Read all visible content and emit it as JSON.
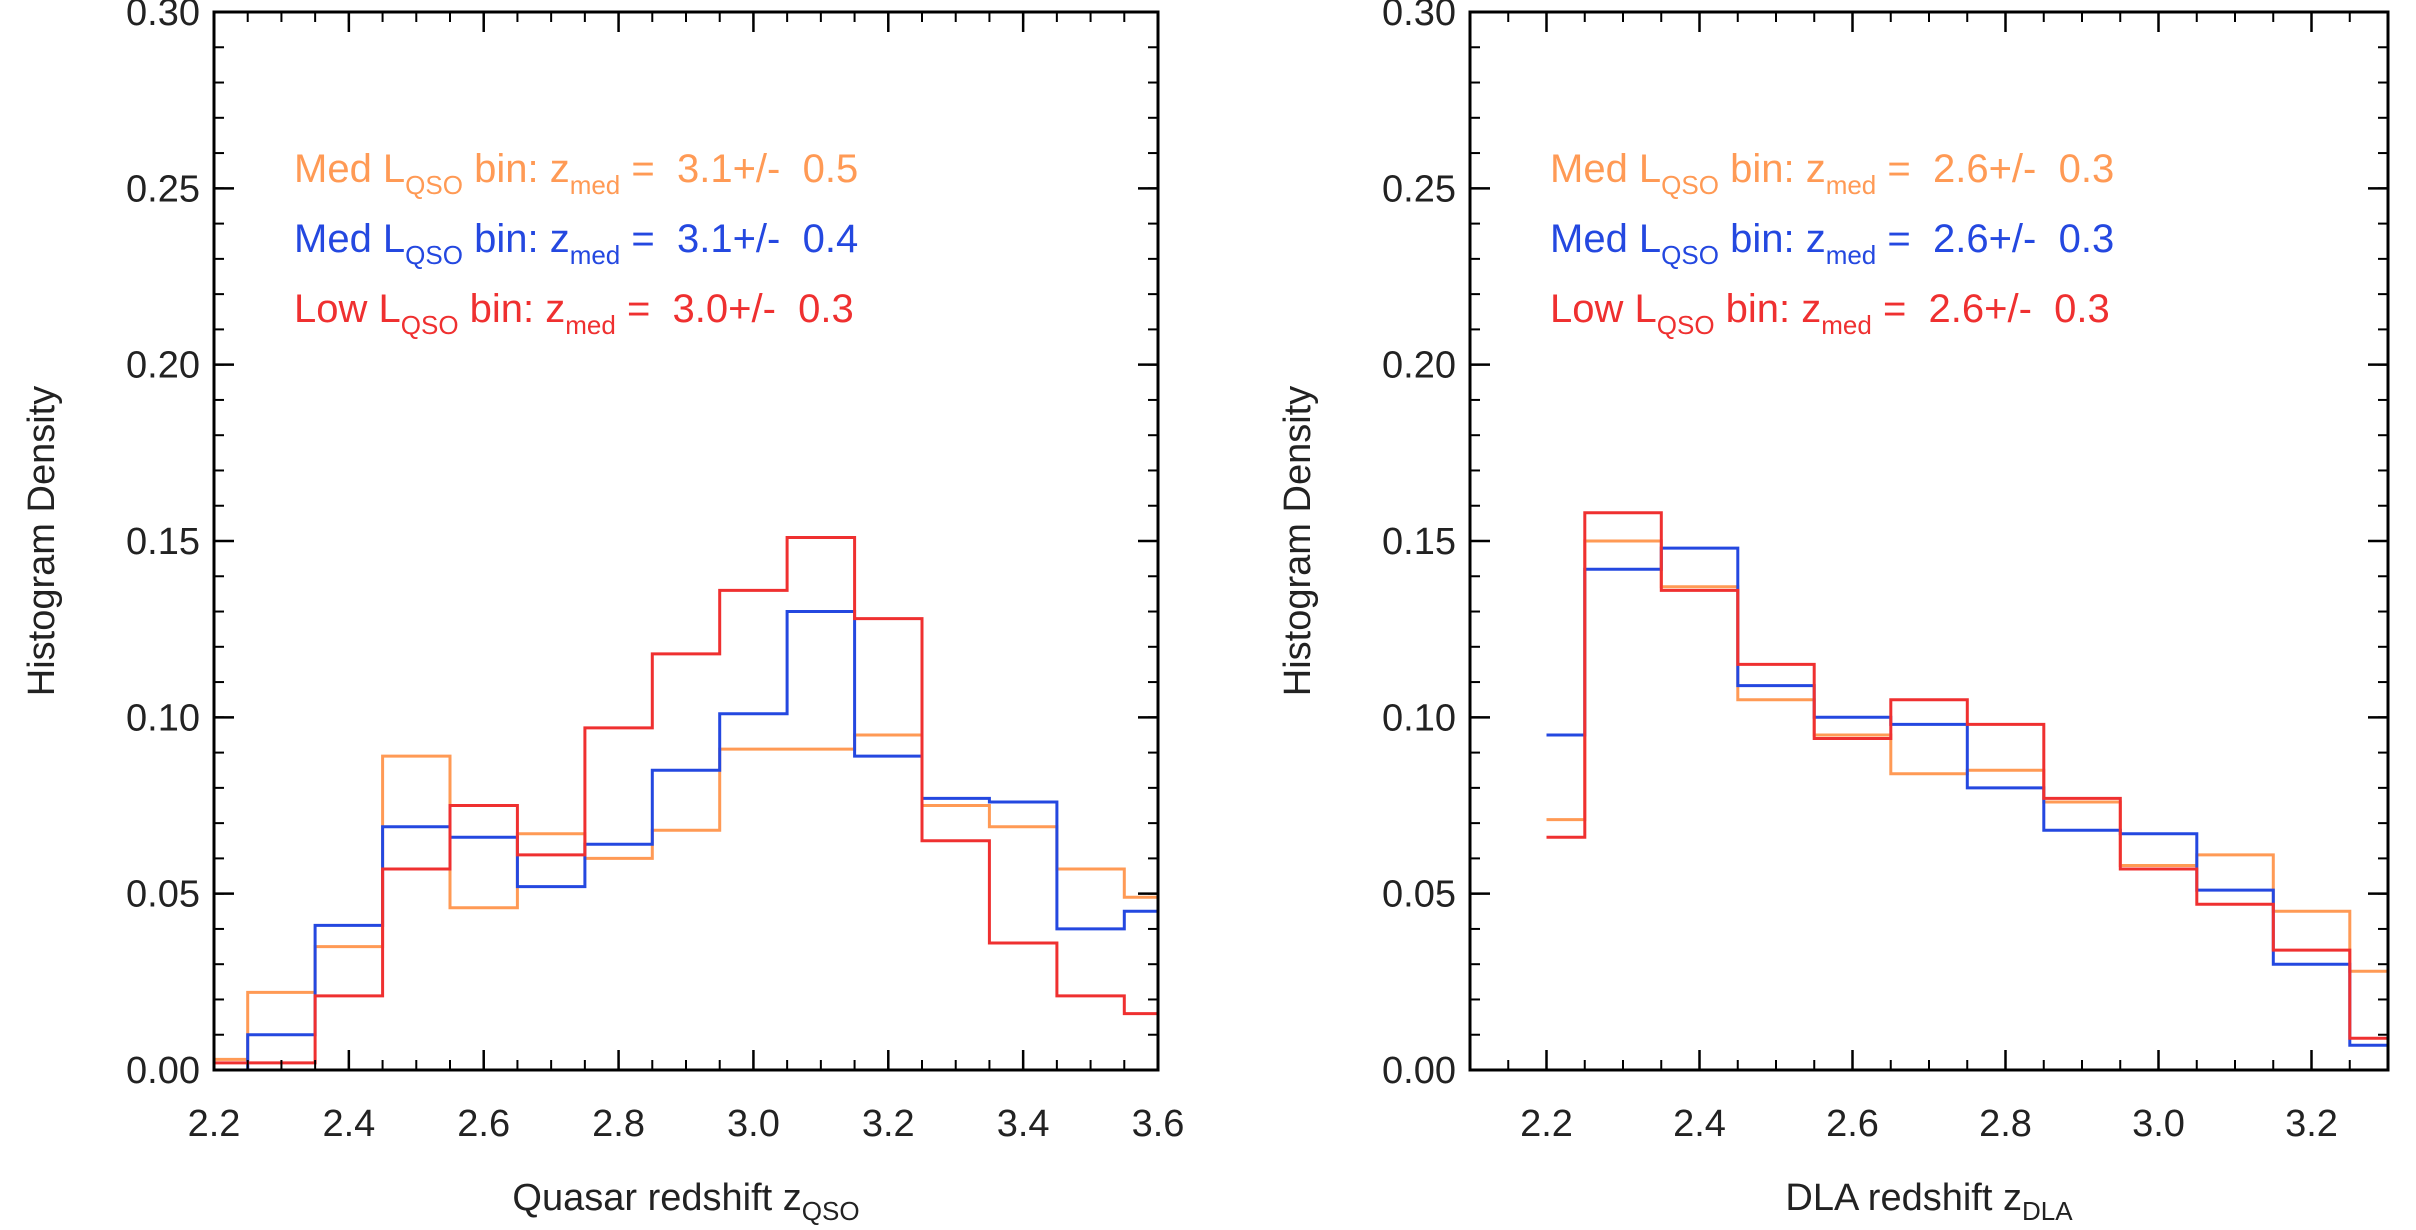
{
  "colors": {
    "med_orange": "#ff9a55",
    "med_blue": "#2448e0",
    "low_red": "#ef3030",
    "axis": "#000000",
    "text": "#222222"
  },
  "chart_data": [
    {
      "type": "step-histogram",
      "xlabel": "Quasar redshift z",
      "xlabel_sub": "QSO",
      "ylabel": "Histogram Density",
      "xlim": [
        2.2,
        3.6
      ],
      "ylim": [
        0.0,
        0.3
      ],
      "xticks": [
        2.2,
        2.4,
        2.6,
        2.8,
        3.0,
        3.2,
        3.4,
        3.6
      ],
      "xtick_labels": [
        "2.2",
        "2.4",
        "2.6",
        "2.8",
        "3.0",
        "3.2",
        "3.4",
        "3.6"
      ],
      "yticks": [
        0.0,
        0.05,
        0.1,
        0.15,
        0.2,
        0.25,
        0.3
      ],
      "ytick_labels": [
        "0.00",
        "0.05",
        "0.10",
        "0.15",
        "0.20",
        "0.25",
        "0.30"
      ],
      "bin_edges": [
        2.15,
        2.25,
        2.35,
        2.45,
        2.55,
        2.65,
        2.75,
        2.85,
        2.95,
        3.05,
        3.15,
        3.25,
        3.35,
        3.45,
        3.55,
        3.65
      ],
      "series": [
        {
          "name": "Med L_QSO bin (orange)",
          "color_key": "med_orange",
          "values": [
            0.003,
            0.022,
            0.035,
            0.089,
            0.046,
            0.067,
            0.06,
            0.068,
            0.091,
            0.091,
            0.095,
            0.075,
            0.069,
            0.057,
            0.049
          ]
        },
        {
          "name": "Med L_QSO bin (blue)",
          "color_key": "med_blue",
          "values": [
            0.0,
            0.01,
            0.041,
            0.069,
            0.066,
            0.052,
            0.064,
            0.085,
            0.101,
            0.13,
            0.089,
            0.077,
            0.076,
            0.04,
            0.045
          ]
        },
        {
          "name": "Low L_QSO bin",
          "color_key": "low_red",
          "values": [
            0.002,
            0.002,
            0.021,
            0.057,
            0.075,
            0.061,
            0.097,
            0.118,
            0.136,
            0.151,
            0.128,
            0.065,
            0.036,
            0.021,
            0.016
          ]
        }
      ],
      "legend": [
        {
          "prefix": "Med L",
          "sub1": "QSO",
          "mid": " bin: z",
          "sub2": "med",
          "suffix": " =  3.1+/-  0.5",
          "color_key": "med_orange"
        },
        {
          "prefix": "Med L",
          "sub1": "QSO",
          "mid": " bin: z",
          "sub2": "med",
          "suffix": " =  3.1+/-  0.4",
          "color_key": "med_blue"
        },
        {
          "prefix": "Low L",
          "sub1": "QSO",
          "mid": " bin: z",
          "sub2": "med",
          "suffix": " =  3.0+/-  0.3",
          "color_key": "low_red"
        }
      ]
    },
    {
      "type": "step-histogram",
      "xlabel": "DLA redshift z",
      "xlabel_sub": "DLA",
      "ylabel": "Histogram Density",
      "xlim": [
        2.1,
        3.3
      ],
      "ylim": [
        0.0,
        0.3
      ],
      "xticks": [
        2.2,
        2.4,
        2.6,
        2.8,
        3.0,
        3.2
      ],
      "xtick_labels": [
        "2.2",
        "2.4",
        "2.6",
        "2.8",
        "3.0",
        "3.2"
      ],
      "yticks": [
        0.0,
        0.05,
        0.1,
        0.15,
        0.2,
        0.25,
        0.3
      ],
      "ytick_labels": [
        "0.00",
        "0.05",
        "0.10",
        "0.15",
        "0.20",
        "0.25",
        "0.30"
      ],
      "bin_edges": [
        2.2,
        2.25,
        2.35,
        2.45,
        2.55,
        2.65,
        2.75,
        2.85,
        2.95,
        3.05,
        3.15,
        3.25,
        3.3
      ],
      "series": [
        {
          "name": "Med L_QSO bin (orange)",
          "color_key": "med_orange",
          "values": [
            0.071,
            0.15,
            0.137,
            0.105,
            0.095,
            0.084,
            0.085,
            0.076,
            0.058,
            0.061,
            0.045,
            0.028
          ]
        },
        {
          "name": "Med L_QSO bin (blue)",
          "color_key": "med_blue",
          "values": [
            0.095,
            0.142,
            0.148,
            0.109,
            0.1,
            0.098,
            0.08,
            0.068,
            0.067,
            0.051,
            0.03,
            0.007
          ]
        },
        {
          "name": "Low L_QSO bin",
          "color_key": "low_red",
          "values": [
            0.066,
            0.158,
            0.136,
            0.115,
            0.094,
            0.105,
            0.098,
            0.077,
            0.057,
            0.047,
            0.034,
            0.009
          ]
        }
      ],
      "legend": [
        {
          "prefix": "Med L",
          "sub1": "QSO",
          "mid": " bin: z",
          "sub2": "med",
          "suffix": " =  2.6+/-  0.3",
          "color_key": "med_orange"
        },
        {
          "prefix": "Med L",
          "sub1": "QSO",
          "mid": " bin: z",
          "sub2": "med",
          "suffix": " =  2.6+/-  0.3",
          "color_key": "med_blue"
        },
        {
          "prefix": "Low L",
          "sub1": "QSO",
          "mid": " bin: z",
          "sub2": "med",
          "suffix": " =  2.6+/-  0.3",
          "color_key": "low_red"
        }
      ]
    }
  ]
}
